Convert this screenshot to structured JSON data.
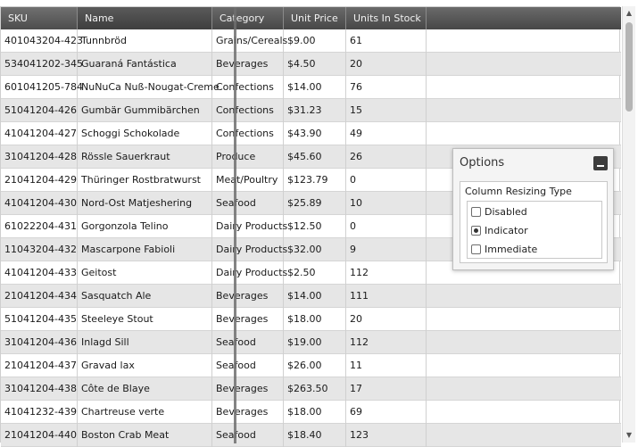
{
  "columns": {
    "sku": "SKU",
    "name": "Name",
    "category": "Category",
    "unit_price": "Unit Price",
    "units_in_stock": "Units In Stock"
  },
  "rows": [
    {
      "sku": "401043204-423",
      "name": "Tunnbröd",
      "category": "Grains/Cereals",
      "price": "$9.00",
      "stock": "61"
    },
    {
      "sku": "534041202-345",
      "name": "Guaraná Fantástica",
      "category": "Beverages",
      "price": "$4.50",
      "stock": "20"
    },
    {
      "sku": "601041205-784",
      "name": "NuNuCa Nuß-Nougat-Creme",
      "category": "Confections",
      "price": "$14.00",
      "stock": "76"
    },
    {
      "sku": "51041204-426",
      "name": "Gumbär Gummibärchen",
      "category": "Confections",
      "price": "$31.23",
      "stock": "15"
    },
    {
      "sku": "41041204-427",
      "name": "Schoggi Schokolade",
      "category": "Confections",
      "price": "$43.90",
      "stock": "49"
    },
    {
      "sku": "31041204-428",
      "name": "Rössle Sauerkraut",
      "category": "Produce",
      "price": "$45.60",
      "stock": "26"
    },
    {
      "sku": "21041204-429",
      "name": "Thüringer Rostbratwurst",
      "category": "Meat/Poultry",
      "price": "$123.79",
      "stock": "0"
    },
    {
      "sku": "41041204-430",
      "name": "Nord-Ost Matjeshering",
      "category": "Seafood",
      "price": "$25.89",
      "stock": "10"
    },
    {
      "sku": "61022204-431",
      "name": "Gorgonzola Telino",
      "category": "Dairy Products",
      "price": "$12.50",
      "stock": "0"
    },
    {
      "sku": "11043204-432",
      "name": "Mascarpone Fabioli",
      "category": "Dairy Products",
      "price": "$32.00",
      "stock": "9"
    },
    {
      "sku": "41041204-433",
      "name": "Geitost",
      "category": "Dairy Products",
      "price": "$2.50",
      "stock": "112"
    },
    {
      "sku": "21041204-434",
      "name": "Sasquatch Ale",
      "category": "Beverages",
      "price": "$14.00",
      "stock": "111"
    },
    {
      "sku": "51041204-435",
      "name": "Steeleye Stout",
      "category": "Beverages",
      "price": "$18.00",
      "stock": "20"
    },
    {
      "sku": "31041204-436",
      "name": "Inlagd Sill",
      "category": "Seafood",
      "price": "$19.00",
      "stock": "112"
    },
    {
      "sku": "21041204-437",
      "name": "Gravad lax",
      "category": "Seafood",
      "price": "$26.00",
      "stock": "11"
    },
    {
      "sku": "31041204-438",
      "name": "Côte de Blaye",
      "category": "Beverages",
      "price": "$263.50",
      "stock": "17"
    },
    {
      "sku": "41041232-439",
      "name": "Chartreuse verte",
      "category": "Beverages",
      "price": "$18.00",
      "stock": "69"
    },
    {
      "sku": "21041204-440",
      "name": "Boston Crab Meat",
      "category": "Seafood",
      "price": "$18.40",
      "stock": "123"
    }
  ],
  "options": {
    "title": "Options",
    "group_label": "Column Resizing Type",
    "choices": [
      {
        "label": "Disabled",
        "selected": false
      },
      {
        "label": "Indicator",
        "selected": true
      },
      {
        "label": "Immediate",
        "selected": false
      }
    ]
  },
  "icons": {
    "minimize": "minimize-icon",
    "scroll_up": "scroll-up-arrow-icon",
    "scroll_down": "scroll-down-arrow-icon"
  },
  "colors": {
    "header_bg": "#4f4f4f",
    "alt_row": "#e6e6e6",
    "indicator": "#6f6f6f"
  }
}
